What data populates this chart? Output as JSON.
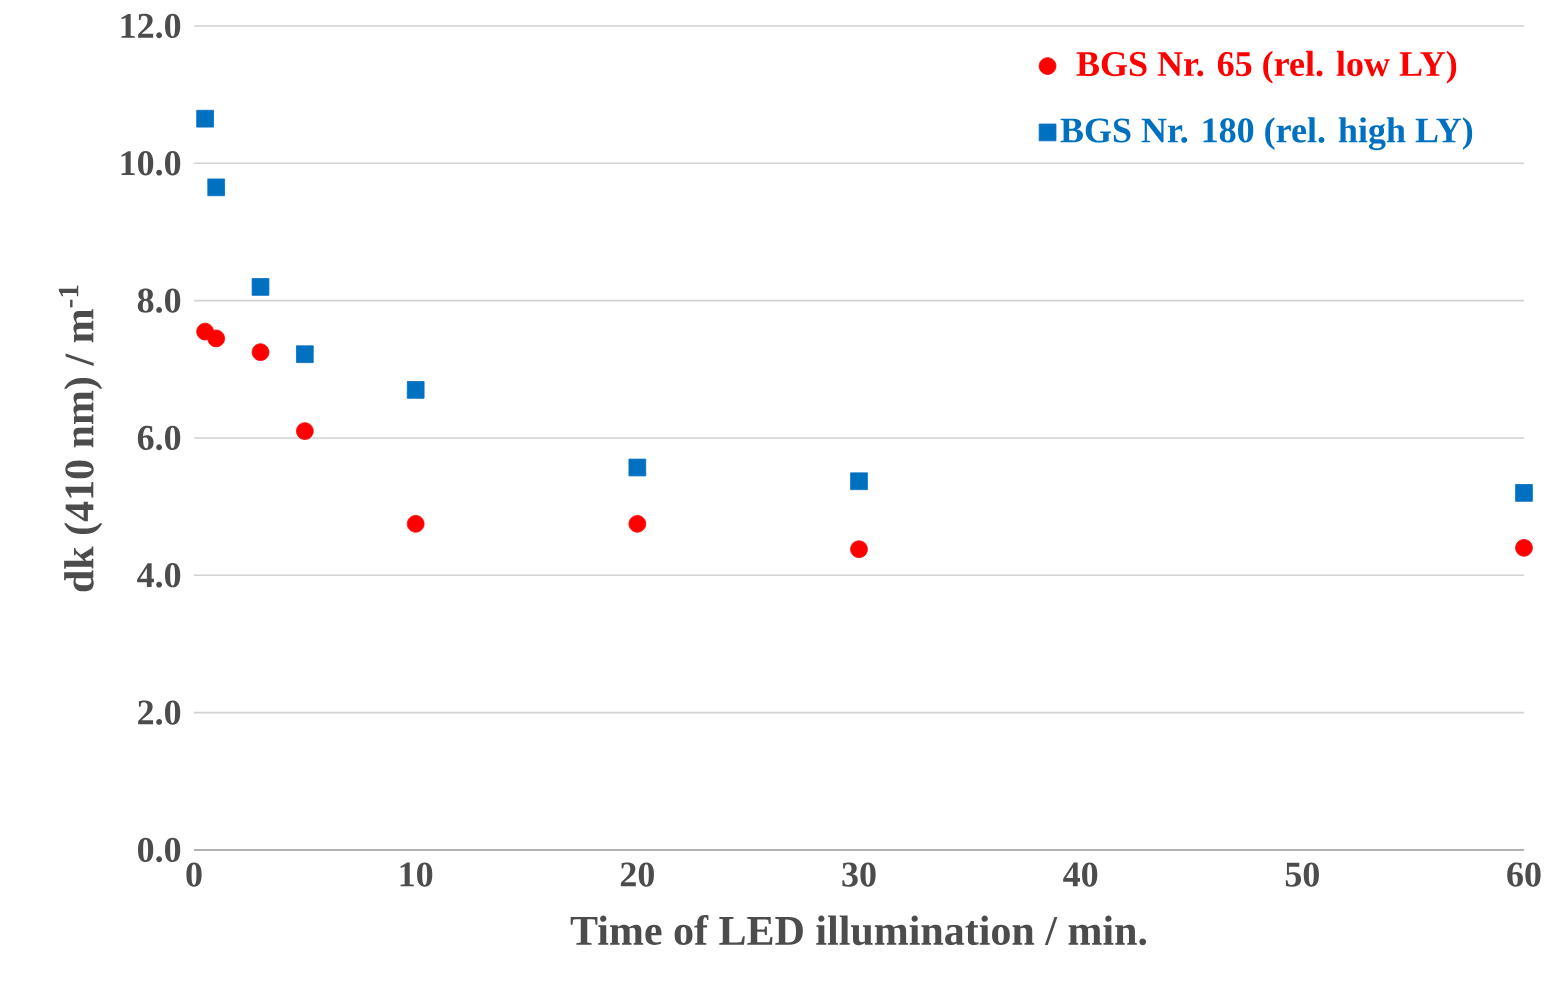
{
  "chart_data": {
    "type": "scatter",
    "xlabel": "Time of LED illumination / min.",
    "ylabel": "dk (410 nm) / m$^{-1}$",
    "x": [
      0.5,
      1,
      3,
      5,
      10,
      20,
      30,
      60
    ],
    "series": [
      {
        "name": "BGS Nr. 65 (rel. low LY)",
        "color": "#ff0000",
        "marker": "circle",
        "values": [
          7.55,
          7.45,
          7.25,
          6.1,
          4.75,
          4.75,
          4.38,
          4.4
        ]
      },
      {
        "name": "BGS Nr. 180 (rel. high LY)",
        "color": "#0070c0",
        "marker": "square",
        "values": [
          10.65,
          9.65,
          8.2,
          7.22,
          6.7,
          5.57,
          5.37,
          5.2
        ]
      }
    ],
    "xlim": [
      0,
      60
    ],
    "xticks": [
      0,
      10,
      20,
      30,
      40,
      50,
      60
    ],
    "ylim": [
      0,
      12
    ],
    "yticks": [
      {
        "value": 0,
        "label": "0.0"
      },
      {
        "value": 2,
        "label": "2.0"
      },
      {
        "value": 4,
        "label": "4.0"
      },
      {
        "value": 6,
        "label": "6.0"
      },
      {
        "value": 8,
        "label": "8.0"
      },
      {
        "value": 10,
        "label": "10.0"
      },
      {
        "value": 12,
        "label": "12.0"
      }
    ],
    "grid": "y",
    "legend": "top right"
  }
}
